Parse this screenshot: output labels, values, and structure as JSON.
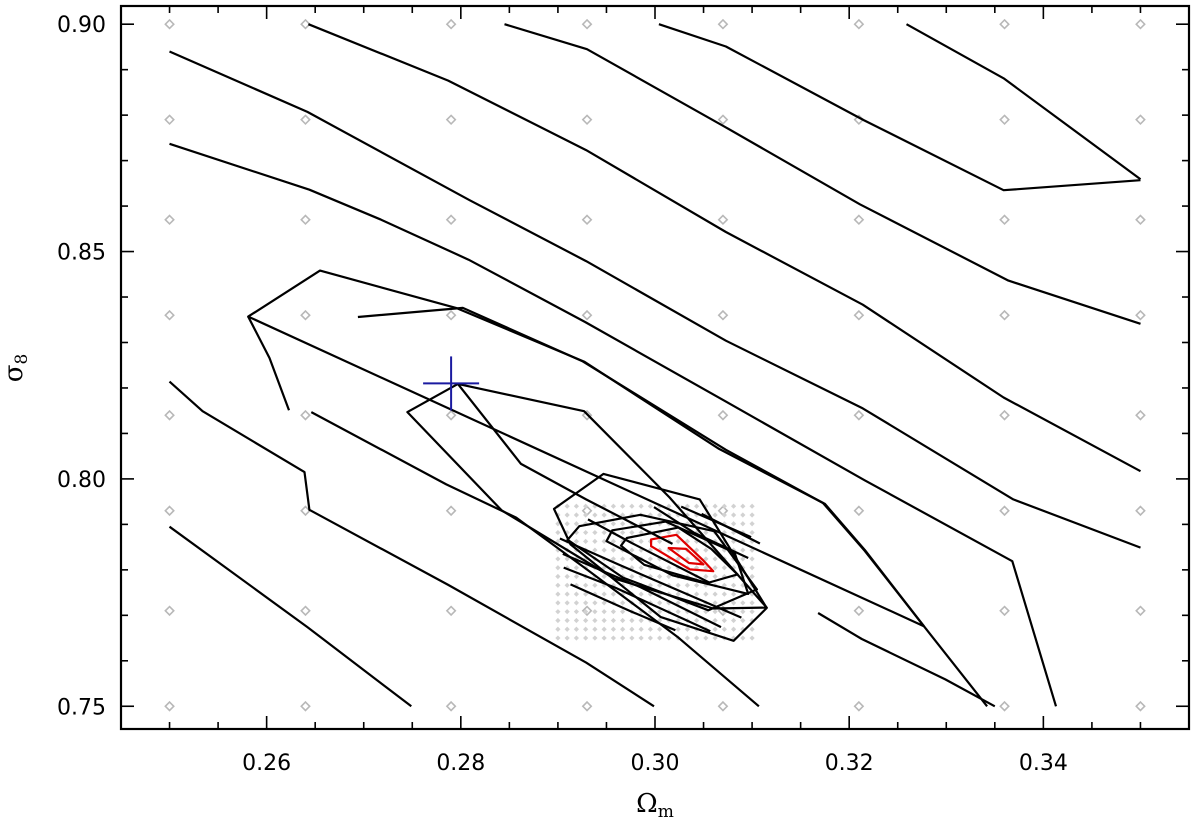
{
  "chart_data": {
    "type": "line",
    "title": "",
    "xlabel": "Ω",
    "xlabel_sub": "m",
    "ylabel": "σ",
    "ylabel_sub": "8",
    "xlim": [
      0.245,
      0.355
    ],
    "ylim": [
      0.745,
      0.904
    ],
    "xticks": [
      0.26,
      0.28,
      0.3,
      0.32,
      0.34
    ],
    "yticks": [
      0.75,
      0.8,
      0.85,
      0.9
    ],
    "xtick_labels": [
      "0.26",
      "0.28",
      "0.30",
      "0.32",
      "0.34"
    ],
    "ytick_labels": [
      "0.75",
      "0.80",
      "0.85",
      "0.90"
    ],
    "grid": false,
    "colors": {
      "contour": "#000000",
      "inner_contour": "#e00000",
      "marker": "#1a1aa0",
      "coarse_grid_points": "#b8b8b8",
      "fine_grid_points": "#d2d2d2"
    },
    "coarse_grid": {
      "x": [
        0.25,
        0.264,
        0.279,
        0.293,
        0.307,
        0.321,
        0.336,
        0.35
      ],
      "y": [
        0.75,
        0.771,
        0.793,
        0.814,
        0.836,
        0.857,
        0.879,
        0.9
      ]
    },
    "fine_grid": {
      "x_range": [
        0.29,
        0.31
      ],
      "y_range": [
        0.765,
        0.794
      ],
      "nx": 22,
      "ny": 16
    },
    "marker": {
      "x": 0.279,
      "y": 0.821,
      "shape": "cross"
    },
    "contours": [
      {
        "color": "inner",
        "closed": true,
        "points": [
          [
            0.2996,
            0.7867
          ],
          [
            0.3022,
            0.7877
          ],
          [
            0.3049,
            0.7822
          ],
          [
            0.306,
            0.7797
          ],
          [
            0.3036,
            0.7801
          ],
          [
            0.2996,
            0.7852
          ]
        ]
      },
      {
        "color": "inner",
        "closed": true,
        "points": [
          [
            0.3014,
            0.7848
          ],
          [
            0.3032,
            0.7846
          ],
          [
            0.305,
            0.7812
          ],
          [
            0.3035,
            0.7815
          ]
        ]
      },
      {
        "color": "black",
        "closed": true,
        "points": [
          [
            0.2971,
            0.787
          ],
          [
            0.3024,
            0.7893
          ],
          [
            0.3058,
            0.7846
          ],
          [
            0.3085,
            0.779
          ],
          [
            0.3054,
            0.7771
          ],
          [
            0.2989,
            0.7811
          ],
          [
            0.2965,
            0.7853
          ]
        ]
      },
      {
        "color": "black",
        "closed": true,
        "points": [
          [
            0.2956,
            0.7887
          ],
          [
            0.3011,
            0.7906
          ],
          [
            0.3082,
            0.7838
          ],
          [
            0.3096,
            0.7747
          ],
          [
            0.3018,
            0.7788
          ],
          [
            0.295,
            0.7863
          ]
        ]
      },
      {
        "color": "black",
        "closed": true,
        "points": [
          [
            0.2922,
            0.7896
          ],
          [
            0.2985,
            0.7921
          ],
          [
            0.3061,
            0.7885
          ],
          [
            0.3105,
            0.7757
          ],
          [
            0.3055,
            0.7711
          ],
          [
            0.2967,
            0.7783
          ],
          [
            0.291,
            0.7866
          ]
        ]
      },
      {
        "color": "black",
        "closed": true,
        "points": [
          [
            0.2896,
            0.7934
          ],
          [
            0.2947,
            0.8011
          ],
          [
            0.3046,
            0.7955
          ],
          [
            0.3115,
            0.7716
          ],
          [
            0.3081,
            0.7644
          ],
          [
            0.3006,
            0.7696
          ],
          [
            0.2913,
            0.7856
          ]
        ]
      },
      {
        "color": "black",
        "closed": false,
        "points": [
          [
            0.2902,
            0.7869
          ],
          [
            0.2963,
            0.7811
          ],
          [
            0.3089,
            0.7695
          ]
        ]
      },
      {
        "color": "black",
        "closed": false,
        "points": [
          [
            0.2931,
            0.7911
          ],
          [
            0.2976,
            0.7859
          ],
          [
            0.3056,
            0.7772
          ]
        ]
      },
      {
        "color": "black",
        "closed": false,
        "points": [
          [
            0.2999,
            0.7938
          ],
          [
            0.304,
            0.7882
          ],
          [
            0.3096,
            0.7826
          ]
        ]
      },
      {
        "color": "black",
        "closed": false,
        "points": [
          [
            0.3027,
            0.7939
          ],
          [
            0.3099,
            0.7872
          ]
        ]
      },
      {
        "color": "black",
        "closed": false,
        "points": [
          [
            0.3048,
            0.7923
          ],
          [
            0.3108,
            0.7858
          ]
        ]
      },
      {
        "color": "black",
        "closed": false,
        "points": [
          [
            0.2905,
            0.7835
          ],
          [
            0.2986,
            0.7761
          ],
          [
            0.3068,
            0.7674
          ]
        ]
      },
      {
        "color": "black",
        "closed": false,
        "points": [
          [
            0.2906,
            0.7805
          ],
          [
            0.2959,
            0.7761
          ],
          [
            0.3057,
            0.7665
          ]
        ]
      },
      {
        "color": "black",
        "closed": false,
        "points": [
          [
            0.2913,
            0.7768
          ],
          [
            0.2976,
            0.7708
          ],
          [
            0.3021,
            0.7667
          ]
        ]
      },
      {
        "color": "black",
        "closed": true,
        "points": [
          [
            0.2745,
            0.8147
          ],
          [
            0.2797,
            0.8209
          ],
          [
            0.2927,
            0.8149
          ],
          [
            0.3015,
            0.7959
          ],
          [
            0.3115,
            0.7717
          ],
          [
            0.306,
            0.7715
          ],
          [
            0.2958,
            0.7781
          ],
          [
            0.2842,
            0.7931
          ]
        ]
      },
      {
        "color": "black",
        "closed": false,
        "points": [
          [
            0.2694,
            0.8356
          ],
          [
            0.2802,
            0.8376
          ],
          [
            0.2925,
            0.8259
          ],
          [
            0.3073,
            0.8064
          ],
          [
            0.3173,
            0.7947
          ],
          [
            0.3216,
            0.7842
          ],
          [
            0.3277,
            0.7676
          ],
          [
            0.3342,
            0.75
          ]
        ]
      },
      {
        "color": "black",
        "closed": true,
        "points": [
          [
            0.2581,
            0.8357
          ],
          [
            0.2655,
            0.8458
          ],
          [
            0.2795,
            0.8376
          ],
          [
            0.2927,
            0.8258
          ],
          [
            0.3066,
            0.8066
          ],
          [
            0.3175,
            0.7945
          ],
          [
            0.3216,
            0.7844
          ],
          [
            0.3277,
            0.7676
          ]
        ]
      },
      {
        "color": "black",
        "closed": false,
        "points": [
          [
            0.2581,
            0.8357
          ],
          [
            0.2603,
            0.8266
          ],
          [
            0.2623,
            0.8151
          ]
        ]
      },
      {
        "color": "black",
        "closed": false,
        "points": [
          [
            0.25,
            0.8737
          ],
          [
            0.2644,
            0.8636
          ],
          [
            0.2717,
            0.8571
          ],
          [
            0.2808,
            0.8482
          ],
          [
            0.2928,
            0.8345
          ],
          [
            0.3073,
            0.817
          ],
          [
            0.3216,
            0.7997
          ],
          [
            0.3368,
            0.7819
          ],
          [
            0.3413,
            0.75
          ]
        ]
      },
      {
        "color": "black",
        "closed": false,
        "points": [
          [
            0.25,
            0.894
          ],
          [
            0.2642,
            0.8807
          ],
          [
            0.2809,
            0.8613
          ],
          [
            0.2929,
            0.8479
          ],
          [
            0.3073,
            0.8304
          ],
          [
            0.3214,
            0.8155
          ],
          [
            0.3369,
            0.7955
          ],
          [
            0.35,
            0.7849
          ]
        ]
      },
      {
        "color": "black",
        "closed": false,
        "points": [
          [
            0.2643,
            0.9
          ],
          [
            0.2787,
            0.8876
          ],
          [
            0.2929,
            0.8723
          ],
          [
            0.3073,
            0.8543
          ],
          [
            0.3214,
            0.8383
          ],
          [
            0.3359,
            0.8179
          ],
          [
            0.35,
            0.8017
          ]
        ]
      },
      {
        "color": "black",
        "closed": false,
        "points": [
          [
            0.2845,
            0.9
          ],
          [
            0.293,
            0.8945
          ],
          [
            0.3073,
            0.8773
          ],
          [
            0.3211,
            0.8604
          ],
          [
            0.3364,
            0.8436
          ],
          [
            0.35,
            0.8341
          ]
        ]
      },
      {
        "color": "black",
        "closed": false,
        "points": [
          [
            0.3004,
            0.9
          ],
          [
            0.3073,
            0.8951
          ],
          [
            0.3215,
            0.8789
          ],
          [
            0.3359,
            0.8635
          ],
          [
            0.35,
            0.8657
          ]
        ]
      },
      {
        "color": "black",
        "closed": false,
        "points": [
          [
            0.3259,
            0.9
          ],
          [
            0.3359,
            0.8881
          ],
          [
            0.35,
            0.8659
          ]
        ]
      },
      {
        "color": "black",
        "closed": false,
        "points": [
          [
            0.25,
            0.8214
          ],
          [
            0.2534,
            0.8149
          ],
          [
            0.2639,
            0.8015
          ],
          [
            0.2644,
            0.7932
          ],
          [
            0.2787,
            0.7767
          ],
          [
            0.2929,
            0.7596
          ],
          [
            0.2999,
            0.75
          ]
        ]
      },
      {
        "color": "black",
        "closed": false,
        "points": [
          [
            0.25,
            0.7895
          ],
          [
            0.2642,
            0.7674
          ],
          [
            0.2749,
            0.75
          ]
        ]
      },
      {
        "color": "black",
        "closed": false,
        "points": [
          [
            0.2646,
            0.8147
          ],
          [
            0.2785,
            0.7988
          ],
          [
            0.2857,
            0.7915
          ],
          [
            0.2929,
            0.7802
          ],
          [
            0.3023,
            0.7653
          ],
          [
            0.3107,
            0.75
          ]
        ]
      },
      {
        "color": "black",
        "closed": false,
        "points": [
          [
            0.2797,
            0.8209
          ],
          [
            0.2862,
            0.8033
          ],
          [
            0.2929,
            0.7955
          ],
          [
            0.3018,
            0.7857
          ]
        ]
      },
      {
        "color": "black",
        "closed": false,
        "points": [
          [
            0.3168,
            0.7705
          ],
          [
            0.3213,
            0.7648
          ],
          [
            0.3299,
            0.7559
          ],
          [
            0.335,
            0.75
          ]
        ]
      }
    ]
  }
}
